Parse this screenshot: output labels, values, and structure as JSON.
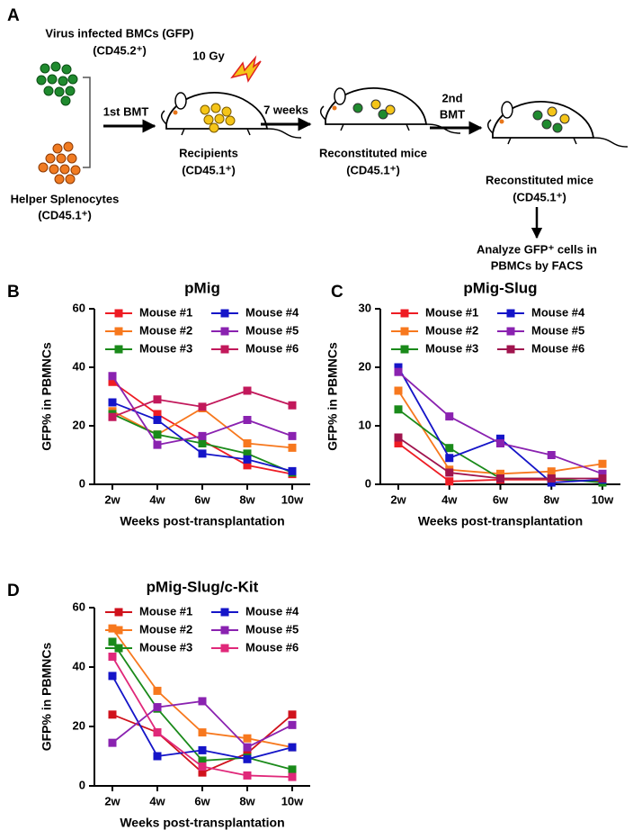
{
  "diagram": {
    "panel": "A",
    "donor_title": "Virus infected BMCs (GFP)",
    "donor_marker": "(CD45.2⁺)",
    "helper_title": "Helper Splenocytes",
    "helper_marker": "(CD45.1⁺)",
    "step1": "1st BMT",
    "irradiation": "10 Gy",
    "step2": "7 weeks",
    "step3_line1": "2nd",
    "step3_line2": "BMT",
    "recipients": "Recipients",
    "recipients_marker": "(CD45.1⁺)",
    "reconstituted1": "Reconstituted mice",
    "reconstituted1_marker": "(CD45.1⁺)",
    "reconstituted2": "Reconstituted mice",
    "reconstituted2_marker": "(CD45.1⁺)",
    "analysis_line1": "Analyze GFP⁺ cells in",
    "analysis_line2": "PBMCs by FACS"
  },
  "chart_data": [
    {
      "type": "line",
      "panel": "B",
      "title": "pMig",
      "x_label": "Weeks post-transplantation",
      "y_label": "GFP% in PBMNCs",
      "categories": [
        "2w",
        "4w",
        "6w",
        "8w",
        "10w"
      ],
      "ylim": [
        0,
        60
      ],
      "yticks": [
        0,
        20,
        40,
        60
      ],
      "legend_loc": "top",
      "series": [
        {
          "name": "Mouse #1",
          "color": "#ee1c24",
          "values": [
            35,
            24,
            15,
            6.5,
            3.5
          ]
        },
        {
          "name": "Mouse #2",
          "color": "#f7781e",
          "values": [
            25,
            17,
            26,
            14,
            12.5
          ]
        },
        {
          "name": "Mouse #3",
          "color": "#1a8a1a",
          "values": [
            24,
            17,
            14,
            10.5,
            4
          ]
        },
        {
          "name": "Mouse #4",
          "color": "#1515c8",
          "values": [
            28,
            22,
            10.5,
            8.5,
            4.5
          ]
        },
        {
          "name": "Mouse #5",
          "color": "#8a22b0",
          "values": [
            37,
            13.5,
            16.5,
            22,
            16.5
          ]
        },
        {
          "name": "Mouse #6",
          "color": "#c2185b",
          "values": [
            23,
            29,
            26.5,
            32,
            27
          ]
        }
      ]
    },
    {
      "type": "line",
      "panel": "C",
      "title": "pMig-Slug",
      "x_label": "Weeks post-transplantation",
      "y_label": "GFP% in PBMNCs",
      "categories": [
        "2w",
        "4w",
        "6w",
        "8w",
        "10w"
      ],
      "ylim": [
        0,
        30
      ],
      "yticks": [
        0,
        10,
        20,
        30
      ],
      "legend_loc": "top",
      "series": [
        {
          "name": "Mouse #1",
          "color": "#ee1c24",
          "values": [
            7,
            0.5,
            0.8,
            0.8,
            0.5
          ]
        },
        {
          "name": "Mouse #2",
          "color": "#f7781e",
          "values": [
            16,
            2.5,
            1.8,
            2.2,
            3.5
          ]
        },
        {
          "name": "Mouse #3",
          "color": "#1a8a1a",
          "values": [
            12.8,
            6.2,
            1,
            1,
            0.3
          ]
        },
        {
          "name": "Mouse #4",
          "color": "#1515c8",
          "values": [
            20,
            4.5,
            7.8,
            0.3,
            0.8
          ]
        },
        {
          "name": "Mouse #5",
          "color": "#8a22b0",
          "values": [
            19.2,
            11.6,
            7,
            5,
            1.8
          ]
        },
        {
          "name": "Mouse #6",
          "color": "#a0144e",
          "values": [
            8,
            2,
            1,
            1,
            1
          ]
        }
      ]
    },
    {
      "type": "line",
      "panel": "D",
      "title": "pMig-Slug/c-Kit",
      "x_label": "Weeks post-transplantation",
      "y_label": "GFP% in PBMNCs",
      "categories": [
        "2w",
        "4w",
        "6w",
        "8w",
        "10w"
      ],
      "ylim": [
        0,
        60
      ],
      "yticks": [
        0,
        20,
        40,
        60
      ],
      "legend_loc": "top",
      "series": [
        {
          "name": "Mouse #1",
          "color": "#d0121c",
          "values": [
            24,
            18,
            4.5,
            11,
            24
          ]
        },
        {
          "name": "Mouse #2",
          "color": "#f7781e",
          "values": [
            53,
            32,
            18,
            16,
            13
          ]
        },
        {
          "name": "Mouse #3",
          "color": "#1a8a1a",
          "values": [
            48.5,
            26,
            8.5,
            9.5,
            5.5
          ]
        },
        {
          "name": "Mouse #4",
          "color": "#1515c8",
          "values": [
            37,
            10,
            12,
            9,
            13
          ]
        },
        {
          "name": "Mouse #5",
          "color": "#8a22b0",
          "values": [
            14.5,
            26.5,
            28.5,
            13,
            20.5
          ]
        },
        {
          "name": "Mouse #6",
          "color": "#e0287a",
          "values": [
            43.5,
            18,
            6.5,
            3.5,
            3
          ]
        }
      ]
    }
  ]
}
